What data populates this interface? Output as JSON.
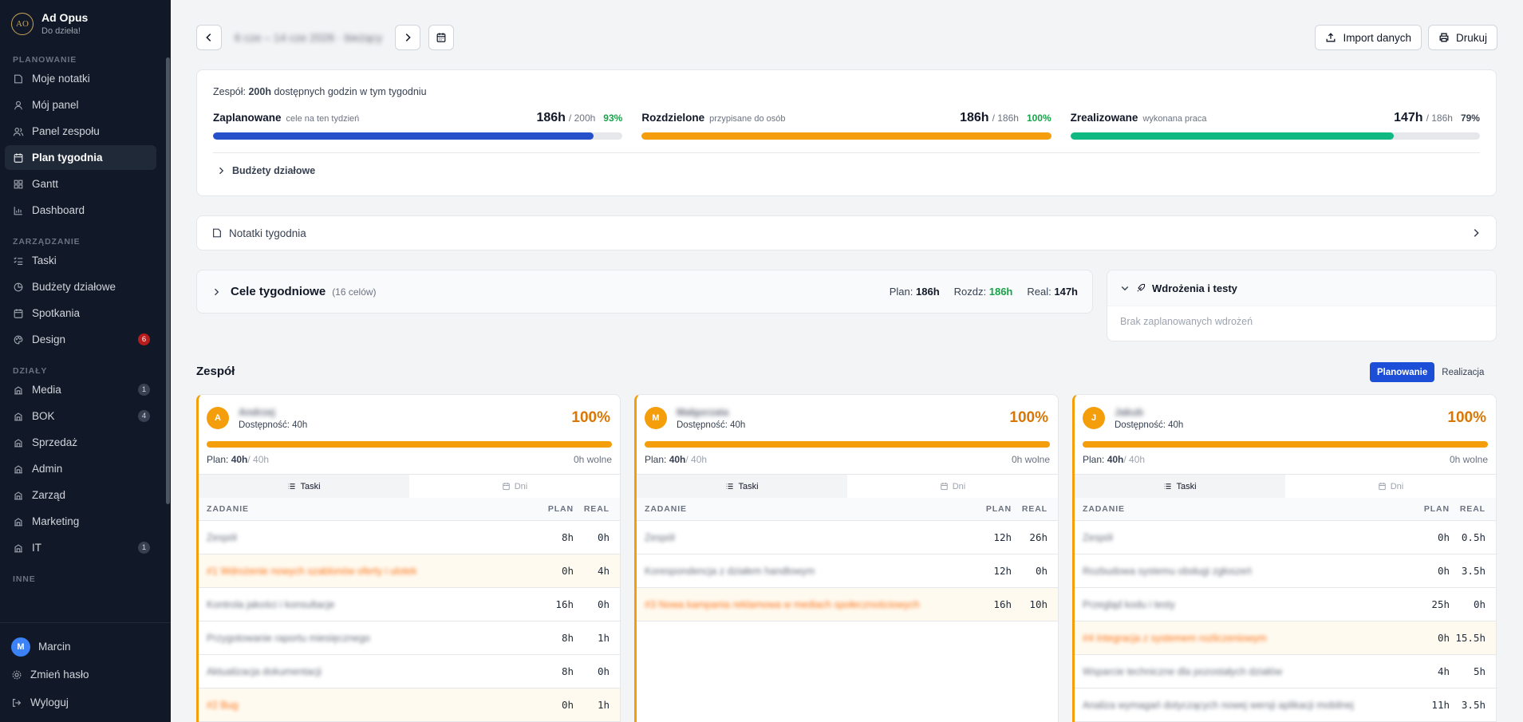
{
  "brand": {
    "logo": "AO",
    "name": "Ad Opus",
    "subtitle": "Do dzieła!"
  },
  "sidebar": {
    "sections": [
      {
        "label": "PLANOWANIE",
        "items": [
          {
            "label": "Moje notatki",
            "icon": "notes-icon"
          },
          {
            "label": "Mój panel",
            "icon": "user-icon"
          },
          {
            "label": "Panel zespołu",
            "icon": "team-icon"
          },
          {
            "label": "Plan tygodnia",
            "icon": "calendar-icon",
            "active": true
          },
          {
            "label": "Gantt",
            "icon": "grid-icon"
          },
          {
            "label": "Dashboard",
            "icon": "chart-icon"
          }
        ]
      },
      {
        "label": "ZARZĄDZANIE",
        "items": [
          {
            "label": "Taski",
            "icon": "tasks-icon"
          },
          {
            "label": "Budżety działowe",
            "icon": "pie-icon"
          },
          {
            "label": "Spotkania",
            "icon": "calendar-icon"
          },
          {
            "label": "Design",
            "icon": "palette-icon",
            "badge": "6",
            "badge_color": "#b91c1c"
          }
        ]
      },
      {
        "label": "DZIAŁY",
        "items": [
          {
            "label": "Media",
            "icon": "building-icon",
            "badge": "1"
          },
          {
            "label": "BOK",
            "icon": "building-icon",
            "badge": "4"
          },
          {
            "label": "Sprzedaż",
            "icon": "building-icon"
          },
          {
            "label": "Admin",
            "icon": "building-icon"
          },
          {
            "label": "Zarząd",
            "icon": "building-icon"
          },
          {
            "label": "Marketing",
            "icon": "building-icon"
          },
          {
            "label": "IT",
            "icon": "building-icon",
            "badge": "1"
          }
        ]
      },
      {
        "label": "INNE",
        "items": []
      }
    ],
    "footer": {
      "user_initial": "M",
      "user_name": "Marcin",
      "change_password": "Zmień hasło",
      "logout": "Wyloguj"
    }
  },
  "topbar": {
    "week_label": "6 cze – 14 cze 2026 · bieżący",
    "import_label": "Import danych",
    "print_label": "Drukuj"
  },
  "summary": {
    "team_prefix": "Zespół: ",
    "team_hours": "200h",
    "team_suffix": " dostępnych godzin w tym tygodniu",
    "stats": [
      {
        "name": "Zaplanowane",
        "desc": "cele na ten tydzień",
        "value": "186h",
        "of": "/ 200h",
        "pct": "93%",
        "fill": 0.93,
        "color": "#2450c9",
        "pct_color": "#16a34a"
      },
      {
        "name": "Rozdzielone",
        "desc": "przypisane do osób",
        "value": "186h",
        "of": "/ 186h",
        "pct": "100%",
        "fill": 1.0,
        "color": "#f59e0b",
        "pct_color": "#16a34a"
      },
      {
        "name": "Zrealizowane",
        "desc": "wykonana praca",
        "value": "147h",
        "of": "/ 186h",
        "pct": "79%",
        "fill": 0.79,
        "color": "#10b981",
        "pct_color": "#374151"
      }
    ],
    "budgets_label": "Budżety działowe"
  },
  "notes": {
    "label": "Notatki tygodnia"
  },
  "goals": {
    "title": "Cele tygodniowe",
    "count": "(16 celów)",
    "plan_label": "Plan:",
    "plan_value": "186h",
    "rozdz_label": "Rozdz:",
    "rozdz_value": "186h",
    "real_label": "Real:",
    "real_value": "147h"
  },
  "deploy": {
    "title": "Wdrożenia i testy",
    "empty": "Brak zaplanowanych wdrożeń"
  },
  "team": {
    "title": "Zespół",
    "toggle": {
      "plan": "Planowanie",
      "real": "Realizacja"
    },
    "col_task": "ZADANIE",
    "col_plan": "PLAN",
    "col_real": "REAL",
    "tab_tasks": "Taski",
    "tab_days": "Dni",
    "members": [
      {
        "initial": "A",
        "name": "Andrzej",
        "avail": "Dostępność: 40h",
        "pct": "100%",
        "plan_label": "Plan: ",
        "plan": "40h",
        "of": " / 40h",
        "free": "0h wolne",
        "tasks": [
          {
            "name": "Zespół",
            "plan": "8h",
            "real": "0h",
            "hl": false
          },
          {
            "name": "#1 Wdrożenie nowych szablonów oferty i ulotek",
            "plan": "0h",
            "real": "4h",
            "hl": true
          },
          {
            "name": "Kontrola jakości i konsultacje",
            "plan": "16h",
            "real": "0h",
            "hl": false
          },
          {
            "name": "Przygotowanie raportu miesięcznego",
            "plan": "8h",
            "real": "1h",
            "hl": false
          },
          {
            "name": "Aktualizacja dokumentacji",
            "plan": "8h",
            "real": "0h",
            "hl": false
          },
          {
            "name": "#2 Bug",
            "plan": "0h",
            "real": "1h",
            "hl": true
          }
        ]
      },
      {
        "initial": "M",
        "name": "Małgorzata",
        "avail": "Dostępność: 40h",
        "pct": "100%",
        "plan_label": "Plan: ",
        "plan": "40h",
        "of": " / 40h",
        "free": "0h wolne",
        "tasks": [
          {
            "name": "Zespół",
            "plan": "12h",
            "real": "26h",
            "hl": false
          },
          {
            "name": "Korespondencja z działem handlowym",
            "plan": "12h",
            "real": "0h",
            "hl": false
          },
          {
            "name": "#3 Nowa kampania reklamowa w mediach społecznościowych",
            "plan": "16h",
            "real": "10h",
            "hl": true
          }
        ]
      },
      {
        "initial": "J",
        "name": "Jakub",
        "avail": "Dostępność: 40h",
        "pct": "100%",
        "plan_label": "Plan: ",
        "plan": "40h",
        "of": " / 40h",
        "free": "0h wolne",
        "tasks": [
          {
            "name": "Zespół",
            "plan": "0h",
            "real": "0.5h",
            "hl": false
          },
          {
            "name": "Rozbudowa systemu obsługi zgłoszeń",
            "plan": "0h",
            "real": "3.5h",
            "hl": false
          },
          {
            "name": "Przegląd kodu i testy",
            "plan": "25h",
            "real": "0h",
            "hl": false
          },
          {
            "name": "#4 Integracja z systemem rozliczeniowym",
            "plan": "0h",
            "real": "15.5h",
            "hl": true
          },
          {
            "name": "Wsparcie techniczne dla pozostałych działów",
            "plan": "4h",
            "real": "5h",
            "hl": false
          },
          {
            "name": "Analiza wymagań dotyczących nowej wersji aplikacji mobilnej",
            "plan": "11h",
            "real": "3.5h",
            "hl": false
          }
        ]
      }
    ]
  }
}
